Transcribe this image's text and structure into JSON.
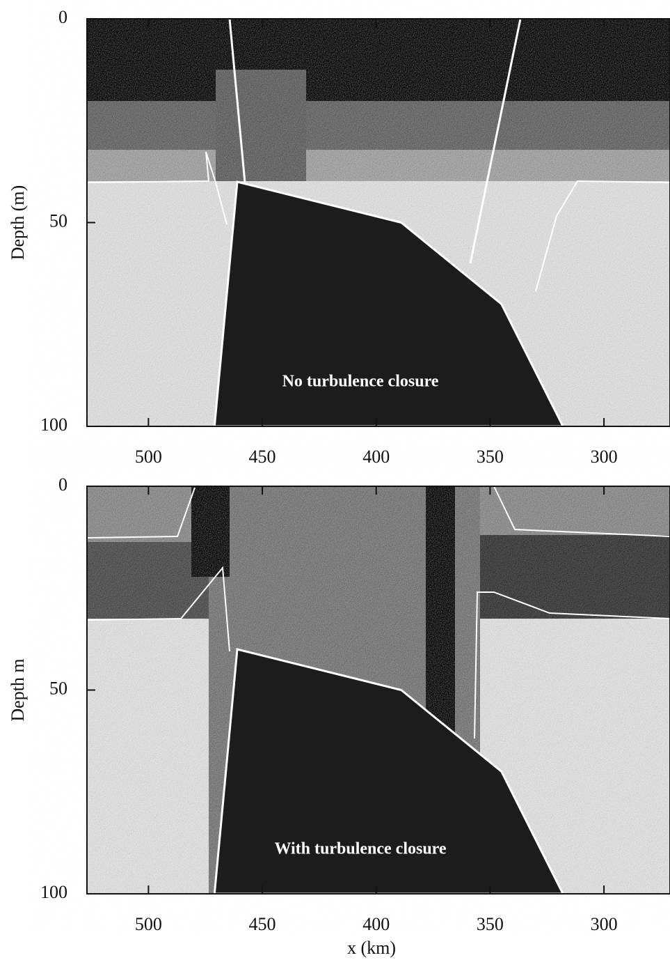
{
  "chart_data": [
    {
      "type": "section",
      "annotation": "No turbulence closure",
      "ylabel": "Depth (m)",
      "xlim": [
        527,
        271
      ],
      "ylim": [
        100,
        0
      ],
      "xticks": [
        500,
        450,
        400,
        350,
        300
      ],
      "yticks": [
        0,
        50,
        100
      ],
      "shelf": {
        "x": [
          471,
          461,
          389,
          345,
          318
        ],
        "y": [
          100,
          40,
          50,
          70,
          100
        ]
      }
    },
    {
      "type": "section",
      "annotation": "With turbulence closure",
      "ylabel": "Depth m",
      "xlabel": "x (km)",
      "xlim": [
        527,
        271
      ],
      "ylim": [
        100,
        0
      ],
      "xticks": [
        500,
        450,
        400,
        350,
        300
      ],
      "yticks": [
        0,
        50,
        100
      ],
      "shelf": {
        "x": [
          471,
          461,
          389,
          345,
          318
        ],
        "y": [
          100,
          40,
          50,
          70,
          100
        ]
      }
    }
  ]
}
